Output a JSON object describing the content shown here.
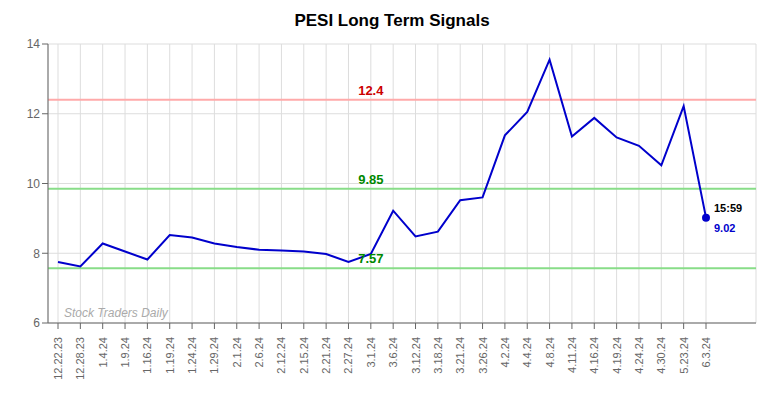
{
  "chart_data": {
    "type": "line",
    "title": "PESI Long Term Signals",
    "categories": [
      "12.22.23",
      "12.28.23",
      "1.4.24",
      "1.9.24",
      "1.16.24",
      "1.19.24",
      "1.24.24",
      "1.29.24",
      "2.1.24",
      "2.6.24",
      "2.12.24",
      "2.15.24",
      "2.21.24",
      "2.27.24",
      "3.1.24",
      "3.6.24",
      "3.12.24",
      "3.18.24",
      "3.21.24",
      "3.26.24",
      "4.2.24",
      "4.4.24",
      "4.8.24",
      "4.11.24",
      "4.16.24",
      "4.19.24",
      "4.24.24",
      "4.30.24",
      "5.23.24",
      "6.3.24"
    ],
    "values": [
      7.75,
      7.62,
      8.28,
      8.05,
      7.82,
      8.52,
      8.45,
      8.28,
      8.18,
      8.1,
      8.08,
      8.05,
      7.98,
      7.75,
      7.98,
      9.22,
      8.48,
      8.62,
      9.52,
      9.6,
      11.38,
      12.05,
      13.55,
      11.35,
      11.88,
      11.32,
      11.08,
      10.52,
      12.22,
      9.02
    ],
    "color": "#0000cc",
    "ylim": [
      6,
      14
    ],
    "yticks": [
      6,
      8,
      10,
      12,
      14
    ],
    "grid": true,
    "reference_lines": [
      {
        "value": 12.4,
        "label": "12.4",
        "color": "#ffaaaa",
        "label_color": "#cc0000"
      },
      {
        "value": 9.85,
        "label": "9.85",
        "color": "#88dd88",
        "label_color": "#008800"
      },
      {
        "value": 7.57,
        "label": "7.57",
        "color": "#88dd88",
        "label_color": "#008800"
      }
    ],
    "last_label": "15:59",
    "last_value_label": "9.02",
    "watermark": "Stock Traders Daily",
    "watermark_color": "#aaaaaa"
  }
}
